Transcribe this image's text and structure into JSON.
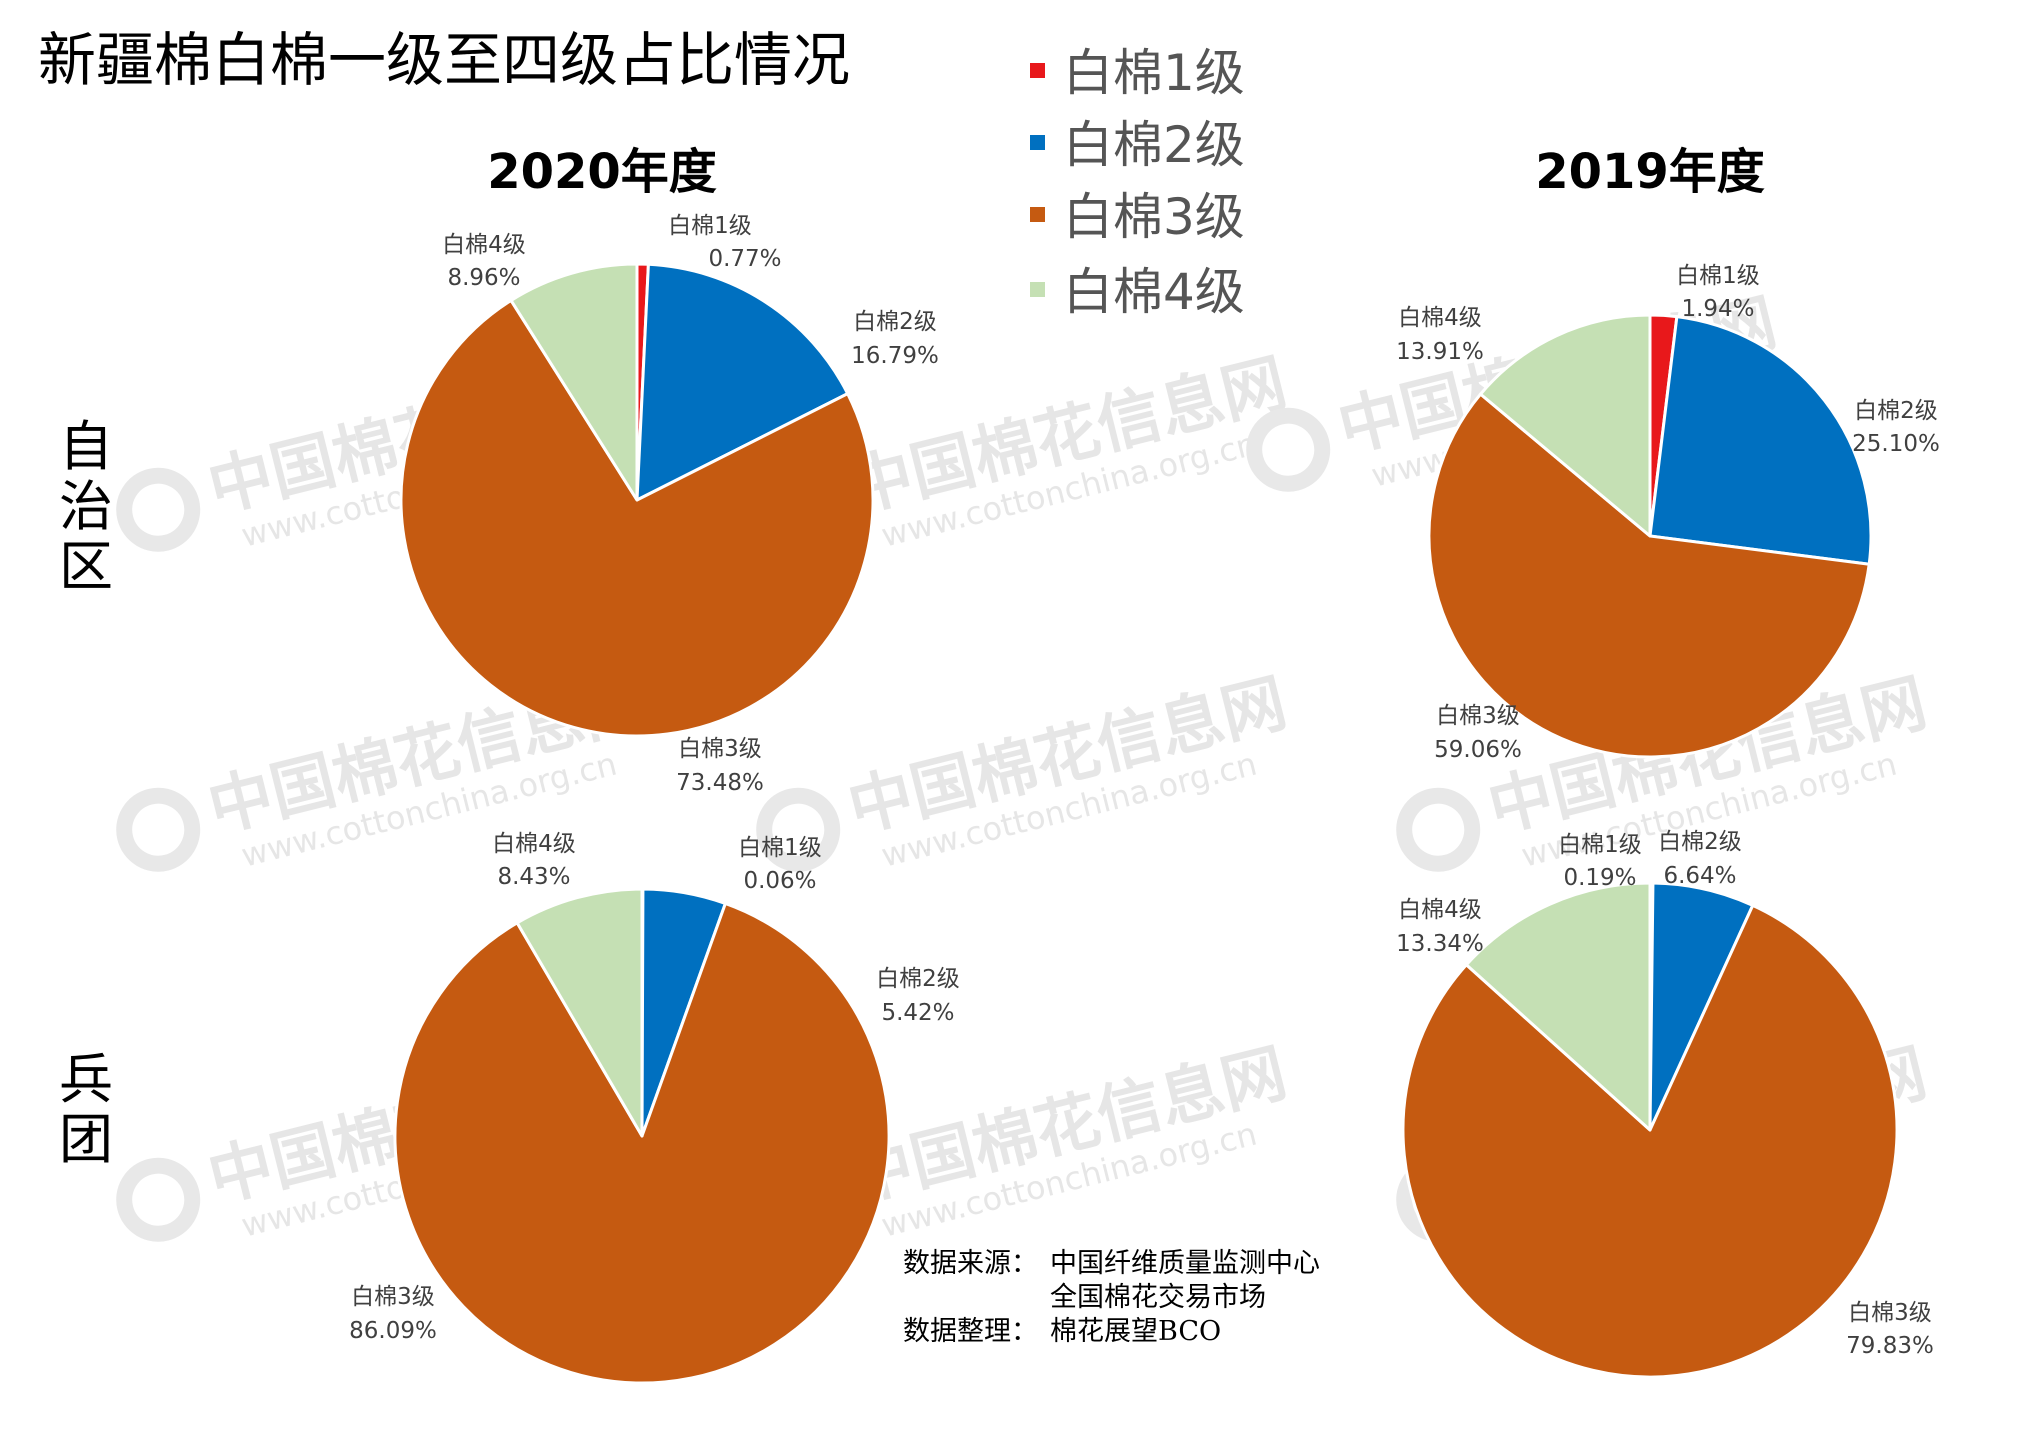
{
  "title": "新疆棉白棉一级至四级占比情况",
  "row_labels": [
    "自\n治\n区",
    "兵\n团"
  ],
  "columns": [
    "2020年度",
    "2019年度"
  ],
  "legend": [
    "白棉1级",
    "白棉2级",
    "白棉3级",
    "白棉4级"
  ],
  "colors": [
    "#e8181b",
    "#0070c0",
    "#c55a11",
    "#c5e0b4"
  ],
  "source": {
    "line1_label": "数据来源：",
    "line1_value": "中国纤维质量监测中心",
    "line2_value": "全国棉花交易市场",
    "line3_label": "数据整理：",
    "line3_value": "棉花展望BCO"
  },
  "watermark": {
    "name": "中国棉花信息网",
    "url": "www.cottonchina.org.cn"
  },
  "chart_data": [
    {
      "type": "pie",
      "row": "自治区",
      "column": "2020年度",
      "categories": [
        "白棉1级",
        "白棉2级",
        "白棉3级",
        "白棉4级"
      ],
      "values": [
        0.77,
        16.79,
        73.48,
        8.96
      ],
      "labels": [
        "0.77%",
        "16.79%",
        "73.48%",
        "8.96%"
      ]
    },
    {
      "type": "pie",
      "row": "自治区",
      "column": "2019年度",
      "categories": [
        "白棉1级",
        "白棉2级",
        "白棉3级",
        "白棉4级"
      ],
      "values": [
        1.94,
        25.1,
        59.06,
        13.91
      ],
      "labels": [
        "1.94%",
        "25.10%",
        "59.06%",
        "13.91%"
      ]
    },
    {
      "type": "pie",
      "row": "兵团",
      "column": "2020年度",
      "categories": [
        "白棉1级",
        "白棉2级",
        "白棉3级",
        "白棉4级"
      ],
      "values": [
        0.06,
        5.42,
        86.09,
        8.43
      ],
      "labels": [
        "0.06%",
        "5.42%",
        "86.09%",
        "8.43%"
      ]
    },
    {
      "type": "pie",
      "row": "兵团",
      "column": "2019年度",
      "categories": [
        "白棉1级",
        "白棉2级",
        "白棉3级",
        "白棉4级"
      ],
      "values": [
        0.19,
        6.64,
        79.83,
        13.34
      ],
      "labels": [
        "0.19%",
        "6.64%",
        "79.83%",
        "13.34%"
      ]
    }
  ]
}
